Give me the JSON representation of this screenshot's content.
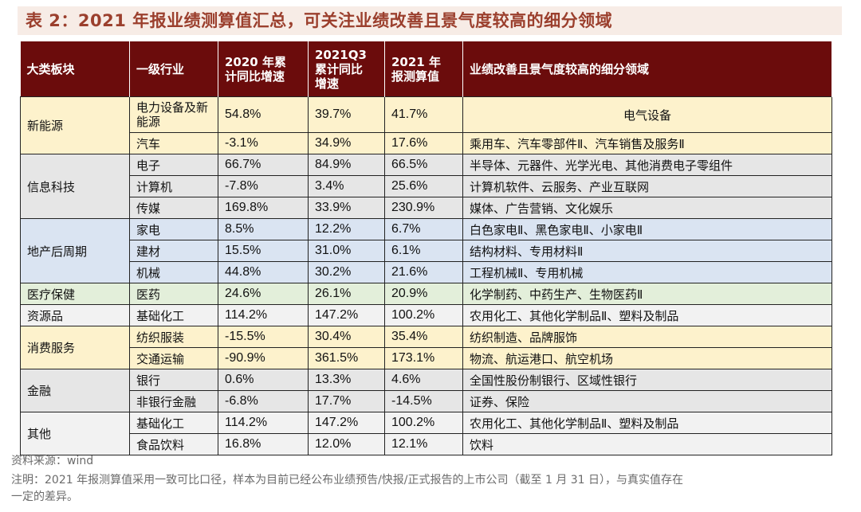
{
  "title": "表 2：2021 年报业绩测算值汇总，可关注业绩改善且景气度较高的细分领域",
  "headers": [
    "大类板块",
    "一级行业",
    "2020 年累计同比增速",
    "2021Q3 累计同比增速",
    "2021 年报测算值",
    "业绩改善且景气度较高的细分领域"
  ],
  "headers_split": {
    "h2": [
      "2020 年累",
      "计同比增速"
    ],
    "h3": [
      "2021Q3",
      "累计同比",
      "增速"
    ],
    "h4": [
      "2021 年",
      "报测算值"
    ]
  },
  "sectors": {
    "xinnengyuan": "新能源",
    "xinxi": "信息科技",
    "dichan": "地产后周期",
    "yiliao": "医疗保健",
    "ziyuan": "资源品",
    "xiaofei": "消费服务",
    "jinrong": "金融",
    "qita": "其他"
  },
  "rows": [
    {
      "industry": "电力设备及新能源",
      "y2020": "54.8%",
      "q3": "39.7%",
      "est": "41.7%",
      "fields": "电气设备"
    },
    {
      "industry": "汽车",
      "y2020": "-3.1%",
      "q3": "34.9%",
      "est": "17.6%",
      "fields": "乘用车、汽车零部件Ⅱ、汽车销售及服务Ⅱ"
    },
    {
      "industry": "电子",
      "y2020": "66.7%",
      "q3": "84.9%",
      "est": "66.5%",
      "fields": "半导体、元器件、光学光电、其他消费电子零组件"
    },
    {
      "industry": "计算机",
      "y2020": "-7.8%",
      "q3": "3.4%",
      "est": "25.6%",
      "fields": "计算机软件、云服务、产业互联网"
    },
    {
      "industry": "传媒",
      "y2020": "169.8%",
      "q3": "33.9%",
      "est": "230.9%",
      "fields": "媒体、广告营销、文化娱乐"
    },
    {
      "industry": "家电",
      "y2020": "8.5%",
      "q3": "12.2%",
      "est": "6.7%",
      "fields": "白色家电Ⅱ、黑色家电Ⅱ、小家电Ⅱ"
    },
    {
      "industry": "建材",
      "y2020": "15.5%",
      "q3": "31.0%",
      "est": "6.1%",
      "fields": "结构材料、专用材料Ⅱ"
    },
    {
      "industry": "机械",
      "y2020": "44.8%",
      "q3": "30.2%",
      "est": "21.6%",
      "fields": "工程机械Ⅱ、专用机械"
    },
    {
      "industry": "医药",
      "y2020": "24.6%",
      "q3": "26.1%",
      "est": "20.9%",
      "fields": "化学制药、中药生产、生物医药Ⅱ"
    },
    {
      "industry": "基础化工",
      "y2020": "114.2%",
      "q3": "147.2%",
      "est": "100.2%",
      "fields": "农用化工、其他化学制品Ⅱ、塑料及制品"
    },
    {
      "industry": "纺织服装",
      "y2020": "-15.5%",
      "q3": "30.4%",
      "est": "35.4%",
      "fields": "纺织制造、品牌服饰"
    },
    {
      "industry": "交通运输",
      "y2020": "-90.9%",
      "q3": "361.5%",
      "est": "173.1%",
      "fields": "物流、航运港口、航空机场"
    },
    {
      "industry": "银行",
      "y2020": "0.6%",
      "q3": "13.3%",
      "est": "4.6%",
      "fields": "全国性股份制银行、区域性银行"
    },
    {
      "industry": "非银行金融",
      "y2020": "-6.8%",
      "q3": "17.7%",
      "est": "-14.5%",
      "fields": "证券、保险"
    },
    {
      "industry": "基础化工",
      "y2020": "114.2%",
      "q3": "147.2%",
      "est": "100.2%",
      "fields": "农用化工、其他化学制品Ⅱ、塑料及制品"
    },
    {
      "industry": "食品饮料",
      "y2020": "16.8%",
      "q3": "12.0%",
      "est": "12.1%",
      "fields": "饮料"
    }
  ],
  "source": "资料来源：wind",
  "note_line1": "注明：2021 年报测算值采用一致可比口径，样本为目前已经公布业绩预告/快报/正式报告的上市公司（截至 1 月 31 日），与真实值存在",
  "note_line2": "一定的差异。"
}
